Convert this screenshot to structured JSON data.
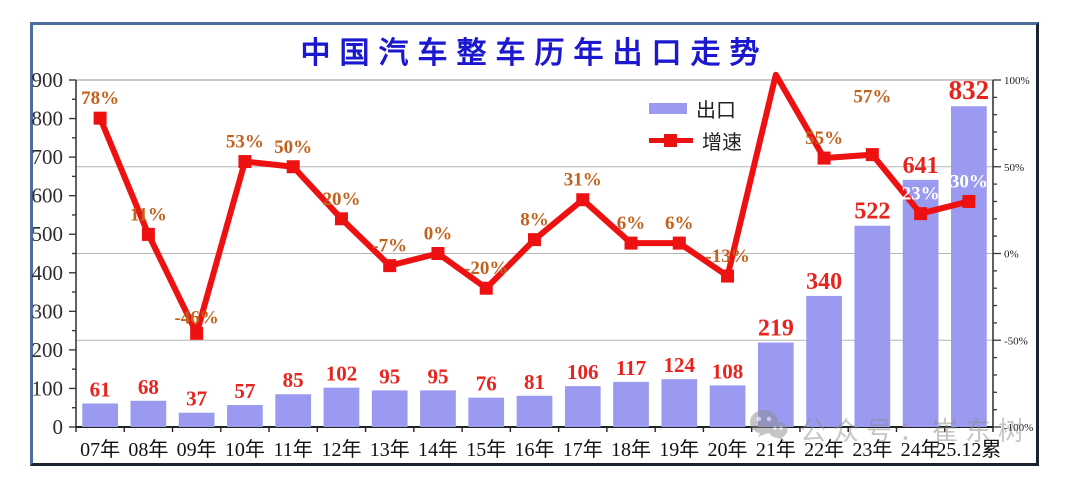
{
  "title": {
    "text": "中国汽车整车历年出口走势",
    "color": "#1b18cf"
  },
  "legend": {
    "position": "top-right-inside",
    "items": [
      {
        "label": "出口",
        "series_type": "bar",
        "swatch_color": "#9a9af0"
      },
      {
        "label": "增速",
        "series_type": "line",
        "swatch_color": "#ee1111"
      }
    ]
  },
  "watermark": {
    "icon": "wechat-icon",
    "text": "公众号：崔东树"
  },
  "chart_data": {
    "type": "combo-bar-line",
    "title": "中国汽车整车历年出口走势",
    "categories": [
      "07年",
      "08年",
      "09年",
      "10年",
      "11年",
      "12年",
      "13年",
      "14年",
      "15年",
      "16年",
      "17年",
      "18年",
      "19年",
      "20年",
      "21年",
      "22年",
      "23年",
      "24年",
      "25.12累"
    ],
    "series": [
      {
        "name": "出口",
        "type": "bar",
        "axis": "left",
        "color": "#9a9af0",
        "label_color": "#e8231d",
        "values": [
          61,
          68,
          37,
          57,
          85,
          102,
          95,
          95,
          76,
          81,
          106,
          117,
          124,
          108,
          219,
          340,
          522,
          641,
          832
        ]
      },
      {
        "name": "增速",
        "type": "line",
        "axis": "right",
        "color": "#ee1111",
        "label_color": "#c2611c",
        "values": [
          78,
          11,
          -46,
          53,
          50,
          20,
          -7,
          0,
          -20,
          8,
          31,
          6,
          6,
          -13,
          103,
          55,
          57,
          23,
          30
        ],
        "labels": [
          "78%",
          "11%",
          "-46%",
          "53%",
          "50%",
          "20%",
          "-7%",
          "0%",
          "-20%",
          "8%",
          "31%",
          "6%",
          "6%",
          "-13%",
          "",
          "55%",
          "57%",
          "23%",
          "30%"
        ],
        "white_label_indices": [
          17,
          18
        ],
        "hidden_marker_indices": [
          14
        ],
        "label_dy": {
          "2": -10,
          "16": -52
        }
      }
    ],
    "left_axis": {
      "min": 0,
      "max": 900,
      "major_step": 100,
      "minor_step": 50,
      "tick_labels": [
        "0",
        "100",
        "200",
        "300",
        "400",
        "500",
        "600",
        "700",
        "800",
        "900"
      ]
    },
    "right_axis": {
      "min": -100,
      "max": 100,
      "major_step": 50,
      "minor_step": 10,
      "label_suffix": "%",
      "tick_labels": [
        "-100%",
        "-50%",
        "0%",
        "50%",
        "100%"
      ]
    },
    "gridlines_right_pct": [
      50,
      0,
      -50
    ],
    "grid": "horizontal-only",
    "legend_position": "top-right-inside",
    "xlabel": "",
    "ylabel": ""
  }
}
